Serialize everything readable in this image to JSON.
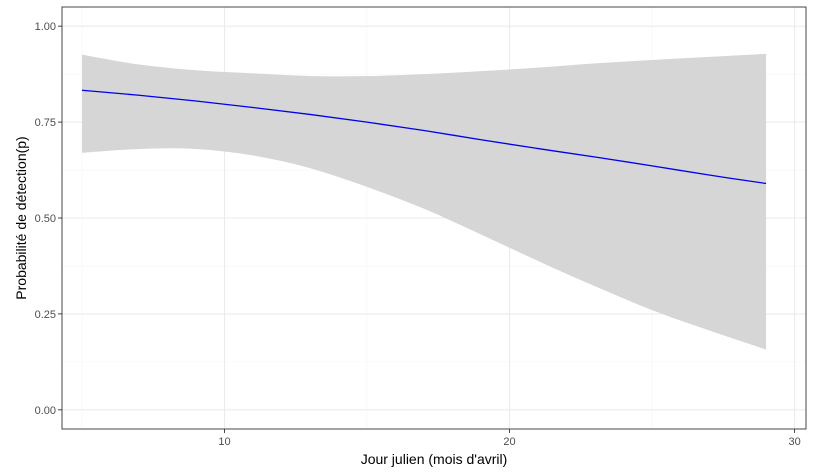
{
  "chart_data": {
    "type": "line",
    "title": "",
    "xlabel": "Jour julien (mois d'avril)",
    "ylabel": "Probabilité de détection(p)",
    "xlim": [
      4.3,
      30.4
    ],
    "ylim": [
      -0.05,
      1.05
    ],
    "x_ticks": [
      10,
      20,
      30
    ],
    "y_ticks": [
      0.0,
      0.25,
      0.5,
      0.75,
      1.0
    ],
    "x_tick_labels": [
      "10",
      "20",
      "30"
    ],
    "y_tick_labels": [
      "0.00",
      "0.25",
      "0.50",
      "0.75",
      "1.00"
    ],
    "grid": true,
    "legend": "none",
    "series": [
      {
        "x": [
          5,
          7,
          9,
          11,
          13,
          15,
          17,
          19,
          21,
          23,
          25,
          27,
          29
        ],
        "y": [
          0.833,
          0.82,
          0.805,
          0.788,
          0.77,
          0.75,
          0.728,
          0.704,
          0.681,
          0.659,
          0.636,
          0.612,
          0.59
        ],
        "lower": [
          0.67,
          0.68,
          0.68,
          0.663,
          0.63,
          0.581,
          0.524,
          0.457,
          0.388,
          0.322,
          0.26,
          0.207,
          0.157
        ],
        "upper": [
          0.926,
          0.9,
          0.885,
          0.877,
          0.87,
          0.87,
          0.875,
          0.883,
          0.892,
          0.903,
          0.912,
          0.92,
          0.928
        ]
      }
    ],
    "colors": {
      "line": "#0000ee",
      "ribbon": "#d6d6d6",
      "grid_major": "#ebebeb",
      "grid_minor": "#f5f5f5",
      "panel_border": "#333333"
    }
  }
}
